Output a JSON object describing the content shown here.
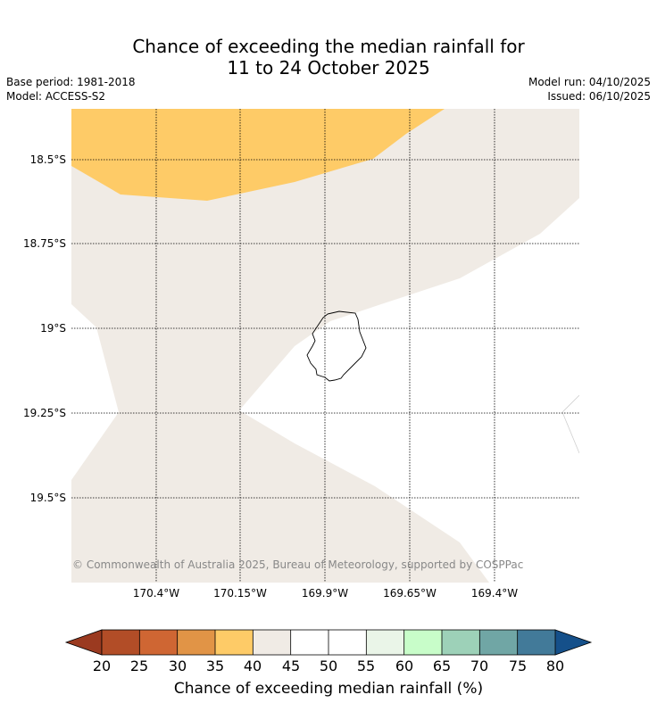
{
  "header": {
    "title_line1": "Chance of exceeding the median rainfall for",
    "title_line2": "11 to 24 October 2025",
    "base_period": "Base period: 1981-2018",
    "model": "Model: ACCESS-S2",
    "model_run": "Model run: 04/10/2025",
    "issued": "Issued: 06/10/2025"
  },
  "map": {
    "lat_labels": [
      "18.5°S",
      "18.75°S",
      "19°S",
      "19.25°S",
      "19.5°S"
    ],
    "lon_labels": [
      "170.4°W",
      "170.15°W",
      "169.9°W",
      "169.65°W",
      "169.4°W"
    ],
    "copyright": "© Commonwealth of Australia 2025, Bureau of Meteorology, supported by COSPPac",
    "region_colors": {
      "35-40": "#fecb67",
      "40-45": "#f0ebe5",
      "45-55": "#ffffff"
    }
  },
  "colorbar": {
    "label": "Chance of exceeding median rainfall (%)",
    "ticks": [
      "20",
      "25",
      "30",
      "35",
      "40",
      "45",
      "50",
      "55",
      "60",
      "65",
      "70",
      "75",
      "80"
    ],
    "under_color": "#9b3a20",
    "over_color": "#15508a",
    "bins": [
      "#b24d27",
      "#cf6633",
      "#e19446",
      "#fecb67",
      "#f0ebe5",
      "#ffffff",
      "#ffffff",
      "#eaf5e8",
      "#c8fdc9",
      "#9dd1b8",
      "#70a6a5",
      "#427a99"
    ]
  }
}
